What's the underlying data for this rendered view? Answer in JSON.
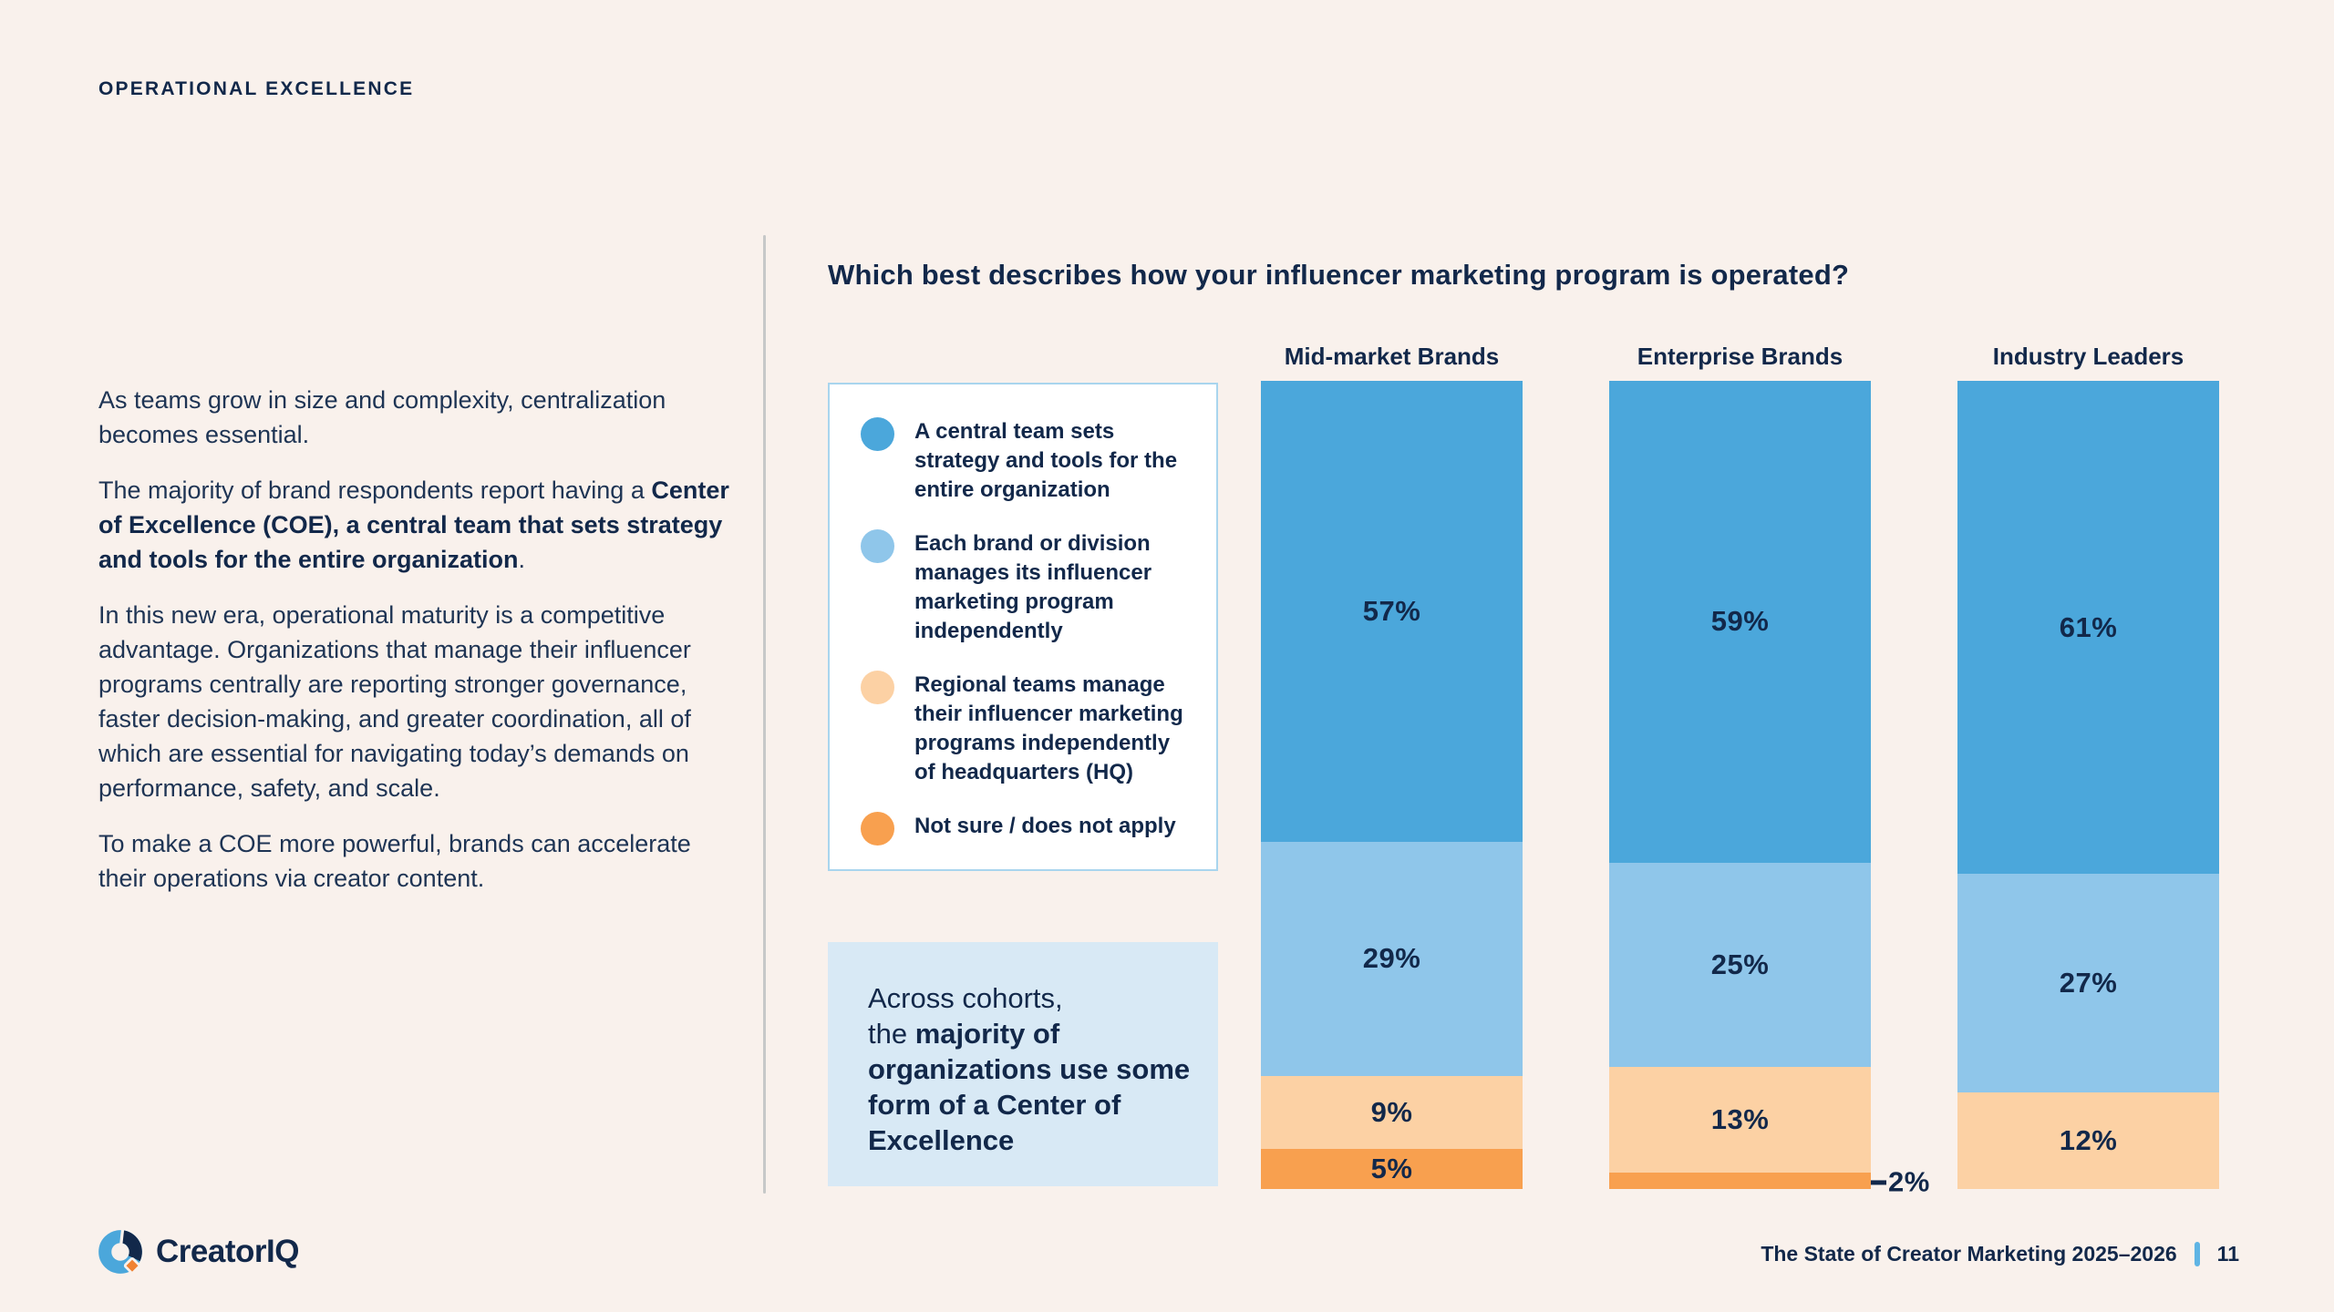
{
  "eyebrow": "OPERATIONAL EXCELLENCE",
  "left_column": {
    "p1": "As teams grow in size and complexity, centralization becomes essential.",
    "p2_prefix": "The majority of brand respondents report having a ",
    "p2_bold": "Center of Excellence (COE), a central team that sets strategy and tools for the entire organization",
    "p2_suffix": ".",
    "p3": "In this new era, operational maturity is a competitive advantage. Organizations that manage their influencer programs centrally are reporting stronger governance, faster decision-making, and greater coordination, all of which are essential for navigating today’s demands on performance, safety, and scale.",
    "p4": "To make a COE more powerful, brands can accelerate their operations via creator content."
  },
  "chart_data": {
    "type": "bar",
    "stacked": true,
    "orientation": "vertical",
    "title": "Which best describes how your influencer marketing program is operated?",
    "categories": [
      "Mid-market Brands",
      "Enterprise Brands",
      "Industry Leaders"
    ],
    "series": [
      {
        "name": "A central team sets strategy and tools for the entire organization",
        "color": "#4BA7DB",
        "values": [
          57,
          59,
          61
        ]
      },
      {
        "name": "Each brand or division manages its influencer marketing program independently",
        "color": "#8FC6EA",
        "values": [
          29,
          25,
          27
        ]
      },
      {
        "name": "Regional teams manage their influencer marketing programs independently of headquarters (HQ)",
        "color": "#FCD1A4",
        "values": [
          9,
          13,
          12
        ]
      },
      {
        "name": "Not sure / does not apply",
        "color": "#F8A04F",
        "values": [
          5,
          2,
          0
        ]
      }
    ],
    "value_suffix": "%",
    "min_inside_label": 4,
    "legend_position": "left",
    "ylim": [
      0,
      100
    ],
    "grid": false
  },
  "callout": {
    "line1": "Across cohorts,",
    "line2_prefix": "the ",
    "line2_bold": "majority of organizations use some form of a Center of Excellence"
  },
  "footer": {
    "brand": "CreatorIQ",
    "report_title": "The State of Creator Marketing 2025–2026",
    "page_number": "11"
  },
  "colors": {
    "background": "#F9F1EC",
    "heading_navy": "#12284A",
    "body_text": "#1E3454",
    "callout_bg": "#D8E9F5",
    "legend_border": "#A9D5EE",
    "divider_gray": "#C6C8C8",
    "footer_accent": "#5FB4E4",
    "logo_blue": "#4BA7DB",
    "logo_navy": "#12284A",
    "logo_orange": "#F08232"
  }
}
